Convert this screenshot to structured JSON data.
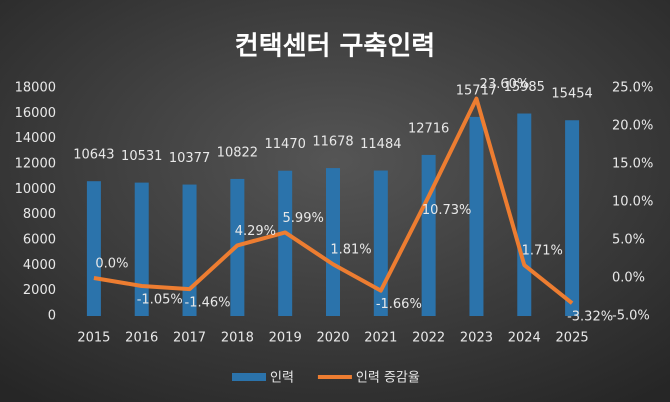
{
  "chart_data": {
    "type": "bar-line",
    "title": "컨택센터 구축인력",
    "categories": [
      "2015",
      "2016",
      "2017",
      "2018",
      "2019",
      "2020",
      "2021",
      "2022",
      "2023",
      "2024",
      "2025"
    ],
    "series": [
      {
        "name": "인력",
        "type": "bar",
        "color": "#2b73ab",
        "values": [
          10643,
          10531,
          10377,
          10822,
          11470,
          11678,
          11484,
          12716,
          15717,
          15985,
          15454
        ]
      },
      {
        "name": "인력 증감율",
        "type": "line",
        "axis": "y2",
        "color": "#ed7d31",
        "values": [
          0,
          -1.05,
          -1.46,
          4.29,
          5.99,
          1.81,
          -1.66,
          10.73,
          23.6,
          1.71,
          -3.32
        ],
        "value_labels": [
          "0.0%",
          "-1.05%",
          "-1.46%",
          "4.29%",
          "5.99%",
          "1.81%",
          "-1.66%",
          "10.73%",
          "23.60%",
          "1.71%",
          "-3.32%"
        ]
      }
    ],
    "ylim": [
      0,
      18000
    ],
    "yticks": [
      0,
      2000,
      4000,
      6000,
      8000,
      10000,
      12000,
      14000,
      16000,
      18000
    ],
    "y2lim": [
      -5,
      25
    ],
    "y2ticks": [
      {
        "value": -5,
        "label": "-5.0%"
      },
      {
        "value": 0,
        "label": "0.0%"
      },
      {
        "value": 5,
        "label": "5.0%"
      },
      {
        "value": 10,
        "label": "10.0%"
      },
      {
        "value": 15,
        "label": "15.0%"
      },
      {
        "value": 20,
        "label": "20.0%"
      },
      {
        "value": 25,
        "label": "25.0%"
      }
    ],
    "grid": false,
    "legend": "bottom"
  }
}
